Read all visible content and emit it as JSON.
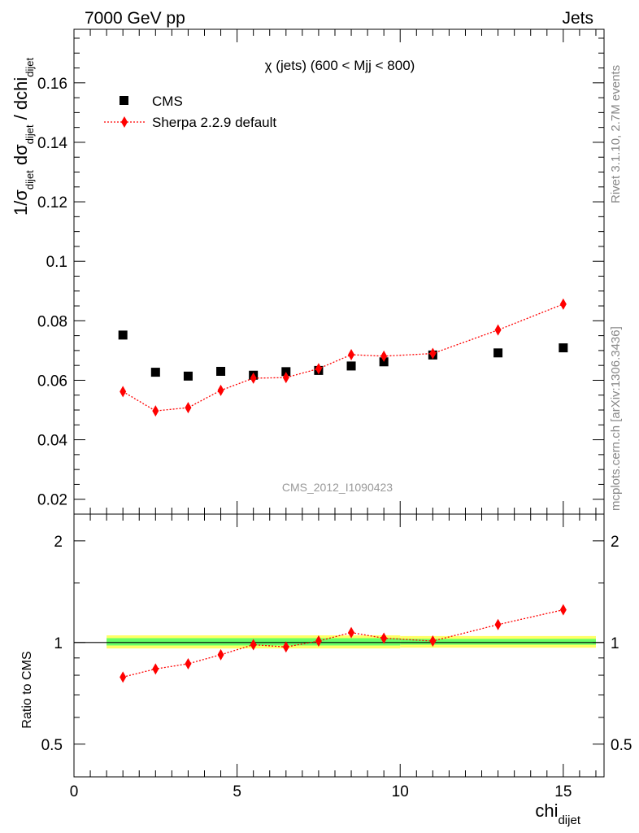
{
  "header": {
    "left": "7000 GeV pp",
    "right": "Jets"
  },
  "side_labels": {
    "rivet": "Rivet 3.1.10,  2.7M events",
    "mcplots": "mcplots.cern.ch [arXiv:1306.3436]"
  },
  "chart_data": [
    {
      "type": "scatter",
      "title": "χ (jets) (600 < Mjj <  800)",
      "watermark": "CMS_2012_I1090423",
      "ylabel": "1/σdijet dσdijet / dchidijet",
      "xlim": [
        0,
        16.25
      ],
      "ylim": [
        0.015,
        0.178
      ],
      "yticks": [
        "0.02",
        "0.04",
        "0.06",
        "0.08",
        "0.1",
        "0.12",
        "0.14",
        "0.16"
      ],
      "grid": false,
      "legend_position": "top-left",
      "series": [
        {
          "name": "CMS",
          "color": "#000000",
          "marker": "square",
          "x": [
            1.5,
            2.5,
            3.5,
            4.5,
            5.5,
            6.5,
            7.5,
            8.5,
            9.5,
            11,
            13,
            15
          ],
          "y": [
            0.0752,
            0.0627,
            0.0614,
            0.063,
            0.0617,
            0.0629,
            0.0633,
            0.0648,
            0.0662,
            0.0685,
            0.0692,
            0.0709
          ]
        },
        {
          "name": "Sherpa 2.2.9 default",
          "color": "#ff0000",
          "marker": "diamond",
          "line": "dotted",
          "x": [
            1.5,
            2.5,
            3.5,
            4.5,
            5.5,
            6.5,
            7.5,
            8.5,
            9.5,
            11,
            13,
            15
          ],
          "y": [
            0.0562,
            0.0497,
            0.0508,
            0.0566,
            0.0607,
            0.0609,
            0.0639,
            0.0686,
            0.0681,
            0.069,
            0.0769,
            0.0856
          ],
          "yerr": [
            0.0016,
            0.0013,
            0.0014,
            0.0014,
            0.0014,
            0.0014,
            0.0014,
            0.0015,
            0.0015,
            0.0015,
            0.0015,
            0.0016
          ]
        }
      ]
    },
    {
      "type": "scatter",
      "xlabel": "chidijet",
      "ylabel": "Ratio to CMS",
      "xlim": [
        0,
        16.25
      ],
      "ylim": [
        0.4,
        2.4
      ],
      "yscale": "log",
      "xticks": [
        "0",
        "5",
        "10",
        "15"
      ],
      "yticks": [
        "0.5",
        "1",
        "2"
      ],
      "reference_line": 1,
      "band_colors": {
        "outer": "#ffff66",
        "inner": "#66ff66"
      },
      "bands": [
        {
          "x": [
            1,
            10
          ],
          "outer": [
            0.96,
            1.05
          ],
          "inner": [
            0.98,
            1.03
          ]
        },
        {
          "x": [
            10,
            16
          ],
          "outer": [
            0.965,
            1.045
          ],
          "inner": [
            0.985,
            1.025
          ]
        }
      ],
      "series": [
        {
          "name": "Sherpa 2.2.9 default",
          "color": "#ff0000",
          "marker": "diamond",
          "line": "dotted",
          "x": [
            1.5,
            2.5,
            3.5,
            4.5,
            5.5,
            6.5,
            7.5,
            8.5,
            9.5,
            11,
            13,
            15
          ],
          "y": [
            0.79,
            0.835,
            0.865,
            0.92,
            0.985,
            0.97,
            1.01,
            1.07,
            1.03,
            1.01,
            1.13,
            1.25
          ],
          "yerr": [
            0.02,
            0.02,
            0.02,
            0.02,
            0.02,
            0.02,
            0.02,
            0.02,
            0.02,
            0.02,
            0.02,
            0.02
          ]
        }
      ]
    }
  ]
}
